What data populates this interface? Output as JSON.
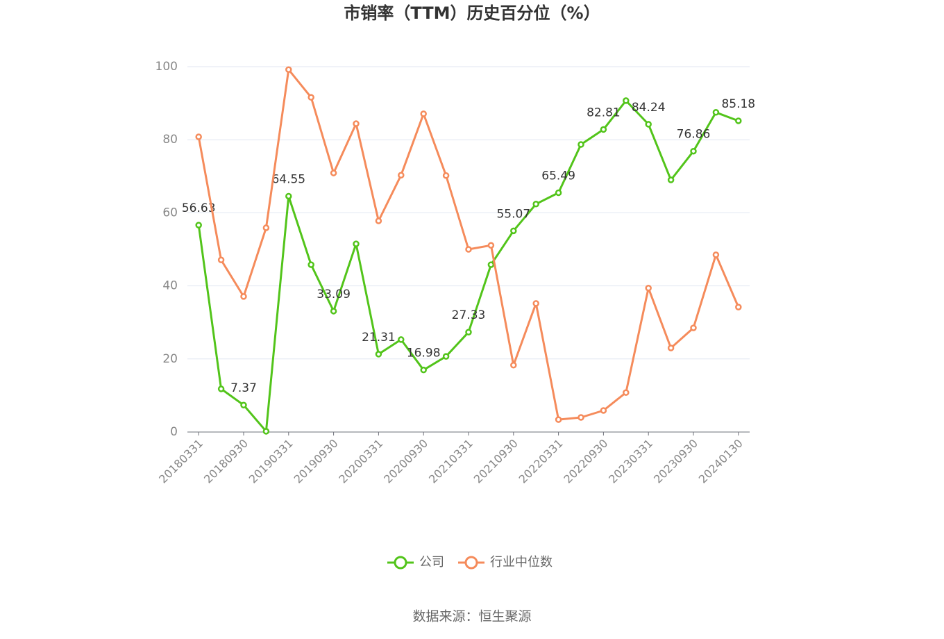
{
  "chart_data": {
    "type": "line",
    "title": "市销率（TTM）历史百分位（%）",
    "source": "数据来源：恒生聚源",
    "categories": [
      "20180331",
      null,
      "20180930",
      null,
      "20190331",
      null,
      "20190930",
      null,
      "20200331",
      null,
      "20200930",
      null,
      "20210331",
      null,
      "20210930",
      null,
      "20220331",
      null,
      "20220930",
      null,
      "20230331",
      null,
      "20230930",
      null,
      "20240130"
    ],
    "series": [
      {
        "name": "公司",
        "color": "#52c41a",
        "label_every": 2,
        "values": [
          56.63,
          11.8,
          7.37,
          0.2,
          64.55,
          45.8,
          33.09,
          51.5,
          21.31,
          25.3,
          16.98,
          20.7,
          27.33,
          45.8,
          55.07,
          62.4,
          65.49,
          78.7,
          82.81,
          90.7,
          84.24,
          69.0,
          76.86,
          87.5,
          85.18
        ]
      },
      {
        "name": "行业中位数",
        "color": "#f58b5b",
        "values": [
          80.8,
          47.1,
          37.1,
          55.9,
          99.2,
          91.6,
          70.9,
          84.4,
          57.8,
          70.3,
          87.1,
          70.2,
          50.0,
          51.1,
          18.3,
          35.2,
          3.4,
          4.0,
          5.9,
          10.8,
          39.4,
          23.0,
          28.5,
          48.5,
          34.2
        ]
      }
    ],
    "ylim": [
      0,
      100
    ],
    "yticks": [
      0,
      20,
      40,
      60,
      80,
      100
    ],
    "grid": true,
    "legend": "bottom"
  }
}
